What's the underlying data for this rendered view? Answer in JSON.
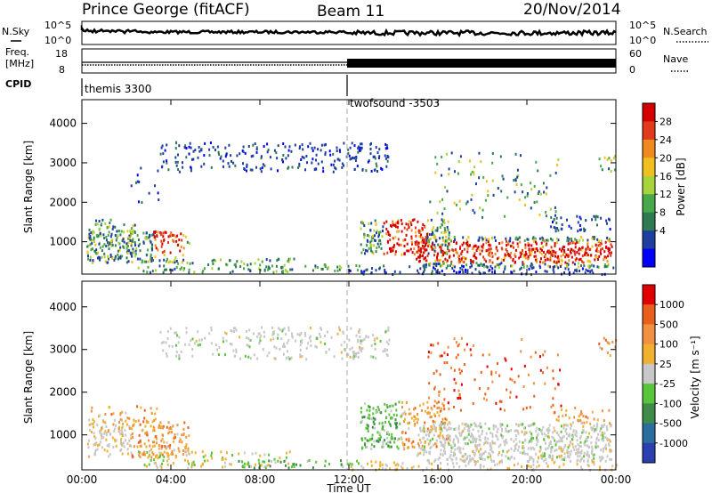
{
  "header": {
    "station": "Prince George (fitACF)",
    "beam": "Beam 11",
    "date": "20/Nov/2014"
  },
  "top_panels": {
    "nsky_label": "N.Sky",
    "nsearch_label": "N.Search",
    "freq_label": "Freq.",
    "freq_unit": "[MHz]",
    "nave_label": "Nave",
    "cpid_label": "CPID",
    "left_ticks_row1": [
      "10^5",
      "10^0"
    ],
    "right_ticks_row1": [
      "10^5",
      "10^0"
    ],
    "left_ticks_row2": [
      "18",
      "8"
    ],
    "right_ticks_row2": [
      "60",
      "0"
    ],
    "cpid_segments": [
      {
        "label": "themis 3300",
        "start_hour": 0
      },
      {
        "label": "twofsound -3503",
        "start_hour": 12
      }
    ]
  },
  "chart_data": [
    {
      "type": "heatmap",
      "name": "power",
      "ylabel": "Slant Range [km]",
      "xlabel": "Time UT",
      "x_ticks": [
        "00:00",
        "04:00",
        "08:00",
        "12:00",
        "16:00",
        "20:00",
        "00:00"
      ],
      "y_ticks": [
        "1000",
        "2000",
        "3000",
        "4000"
      ],
      "xlim_hours": [
        0,
        24
      ],
      "ylim_km": [
        180,
        4600
      ],
      "colorbar": {
        "label": "Power [dB]",
        "ticks": [
          "28",
          "24",
          "20",
          "16",
          "12",
          "8",
          "4"
        ],
        "colors": [
          "#0000ff",
          "#1e3fa0",
          "#2f7a50",
          "#48a84a",
          "#a7d43a",
          "#f0c020",
          "#f08a20",
          "#e23a1c",
          "#d40000"
        ]
      }
    },
    {
      "type": "heatmap",
      "name": "velocity",
      "ylabel": "Slant Range [km]",
      "xlabel": "Time UT",
      "x_ticks": [
        "00:00",
        "04:00",
        "08:00",
        "12:00",
        "16:00",
        "20:00",
        "00:00"
      ],
      "y_ticks": [
        "1000",
        "2000",
        "3000",
        "4000"
      ],
      "xlim_hours": [
        0,
        24
      ],
      "ylim_km": [
        180,
        4600
      ],
      "colorbar": {
        "label": "Velocity  [m s⁻¹]",
        "ticks": [
          "1000",
          "500",
          "100",
          "25",
          "-25",
          "-100",
          "-500",
          "-1000"
        ],
        "colors": [
          "#2a3fb0",
          "#2b6e9e",
          "#3f8c4a",
          "#58c53a",
          "#c8c8c8",
          "#f0b030",
          "#f09040",
          "#e8601c",
          "#e00000"
        ]
      }
    }
  ]
}
